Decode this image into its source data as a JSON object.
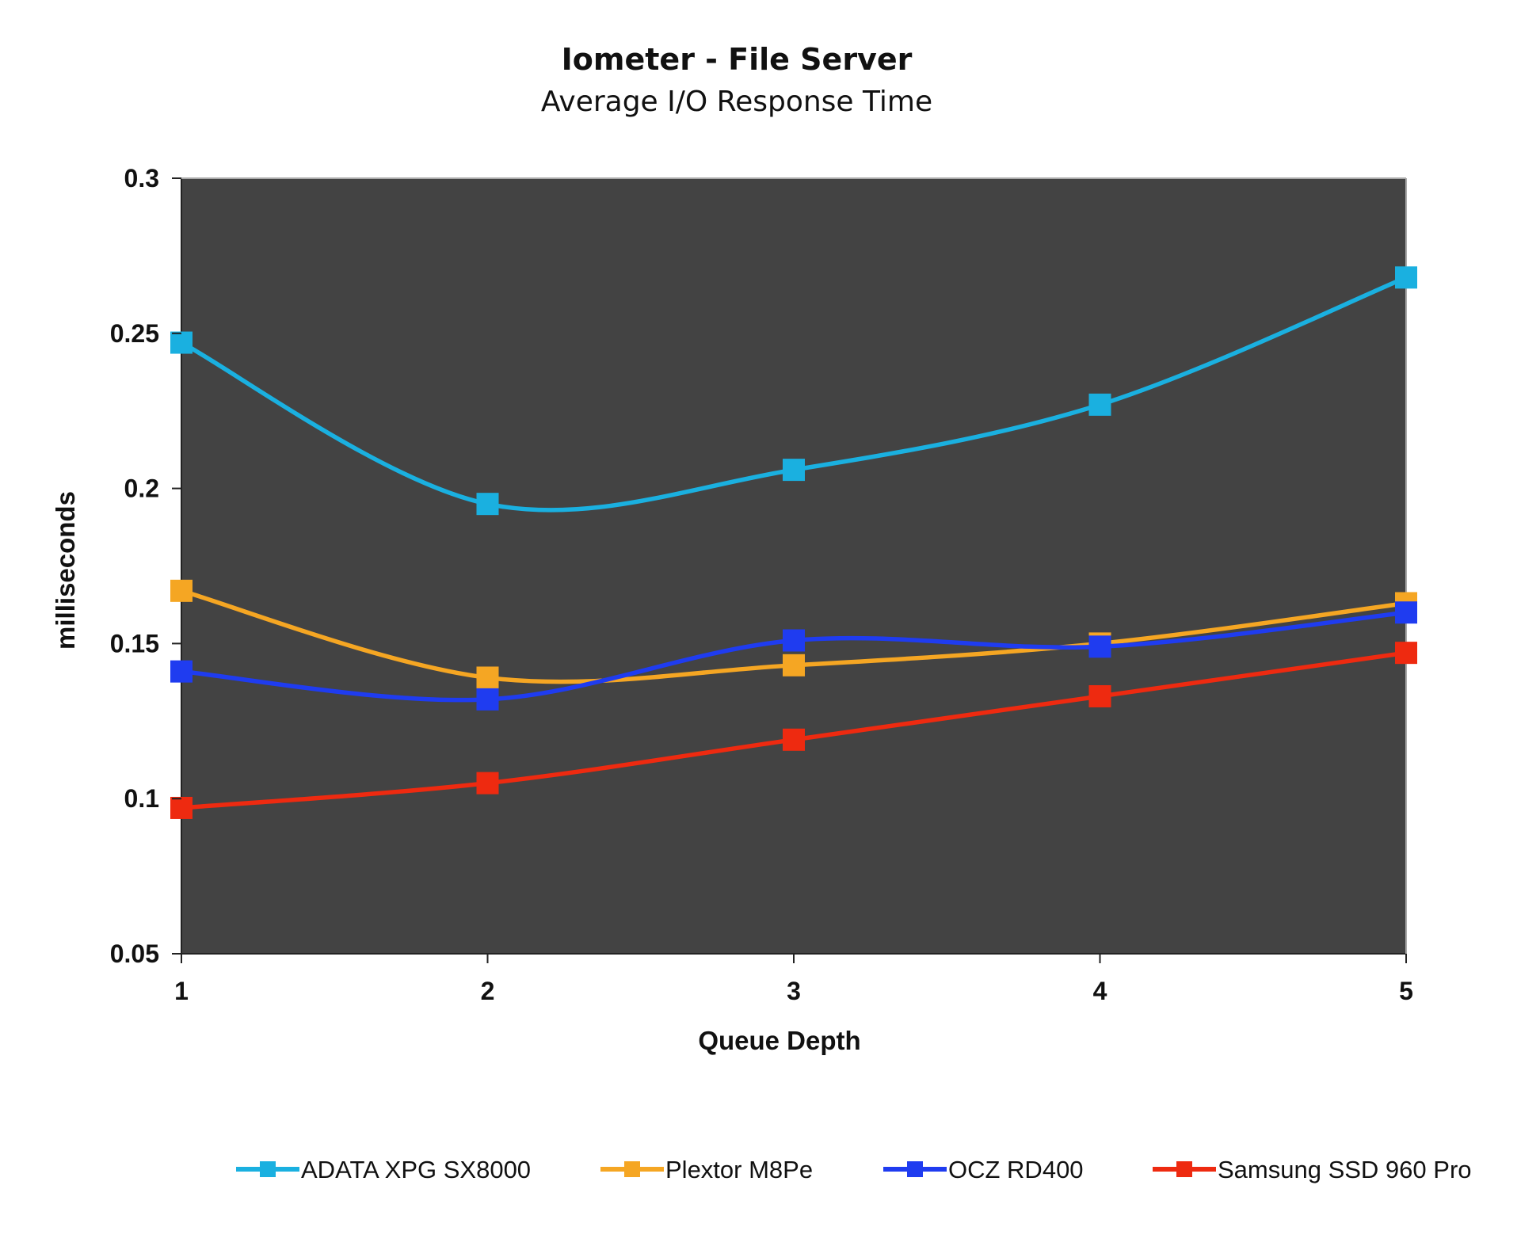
{
  "chart_data": {
    "type": "line",
    "title": "Iometer - File Server",
    "subtitle": "Average I/O Response Time",
    "xlabel": "Queue Depth",
    "ylabel": "milliseconds",
    "x": [
      1,
      2,
      3,
      4,
      5
    ],
    "x_tick_labels": [
      "1",
      "2",
      "3",
      "4",
      "5"
    ],
    "ylim": [
      0.05,
      0.3
    ],
    "y_ticks": [
      0.05,
      0.1,
      0.15,
      0.2,
      0.25,
      0.3
    ],
    "y_tick_labels": [
      "0.05",
      "0.1",
      "0.15",
      "0.2",
      "0.25",
      "0.3"
    ],
    "grid": false,
    "plot_background": "#434343",
    "legend_position": "bottom",
    "series": [
      {
        "name": "ADATA XPG SX8000",
        "color": "#1ab0e0",
        "values": [
          0.247,
          0.195,
          0.206,
          0.227,
          0.268
        ]
      },
      {
        "name": "Plextor M8Pe",
        "color": "#f5a623",
        "values": [
          0.167,
          0.139,
          0.143,
          0.15,
          0.163
        ]
      },
      {
        "name": "OCZ RD400",
        "color": "#1f3cf0",
        "values": [
          0.141,
          0.132,
          0.151,
          0.149,
          0.16
        ]
      },
      {
        "name": "Samsung SSD 960 Pro",
        "color": "#ee2a10",
        "values": [
          0.097,
          0.105,
          0.119,
          0.133,
          0.147
        ]
      }
    ]
  }
}
